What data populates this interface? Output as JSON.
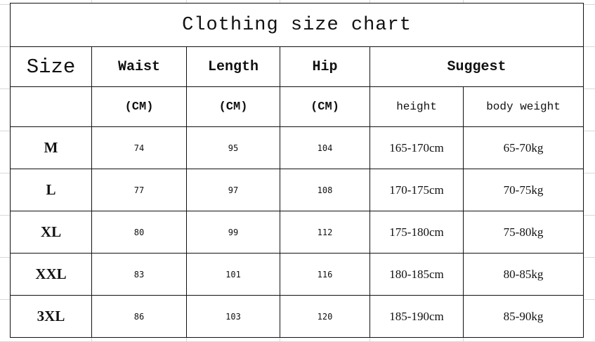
{
  "title": "Clothing size chart",
  "headers": {
    "size": "Size",
    "waist": "Waist",
    "length": "Length",
    "hip": "Hip",
    "suggest": "Suggest"
  },
  "units": {
    "waist": "(CM)",
    "length": "(CM)",
    "hip": "(CM)",
    "height": "height",
    "weight": "body weight"
  },
  "rows": [
    {
      "size": "M",
      "waist": "74",
      "length": "95",
      "hip": "104",
      "height": "165-170cm",
      "weight": "65-70kg"
    },
    {
      "size": "L",
      "waist": "77",
      "length": "97",
      "hip": "108",
      "height": "170-175cm",
      "weight": "70-75kg"
    },
    {
      "size": "XL",
      "waist": "80",
      "length": "99",
      "hip": "112",
      "height": "175-180cm",
      "weight": "75-80kg"
    },
    {
      "size": "XXL",
      "waist": "83",
      "length": "101",
      "hip": "116",
      "height": "180-185cm",
      "weight": "80-85kg"
    },
    {
      "size": "3XL",
      "waist": "86",
      "length": "103",
      "hip": "120",
      "height": "185-190cm",
      "weight": "85-90kg"
    }
  ]
}
